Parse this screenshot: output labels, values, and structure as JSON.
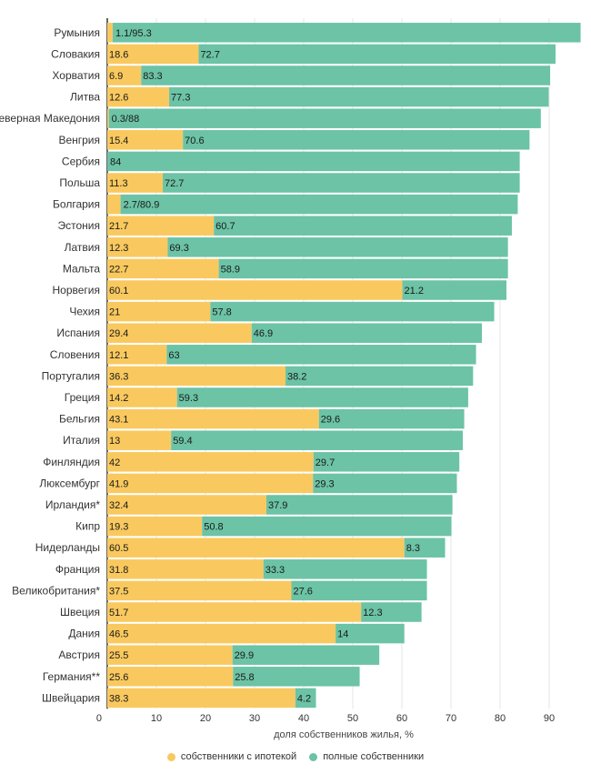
{
  "chart_data": {
    "type": "bar",
    "orientation": "horizontal",
    "stacked": true,
    "xlabel": "доля собственников жилья, %",
    "ylabel": "",
    "xlim": [
      0,
      97
    ],
    "xticks": [
      0,
      10,
      20,
      30,
      40,
      50,
      60,
      70,
      80,
      90
    ],
    "grid": true,
    "legend_position": "bottom",
    "categories": [
      "Румыния",
      "Словакия",
      "Хорватия",
      "Литва",
      "Северная Македония",
      "Венгрия",
      "Сербия",
      "Польша",
      "Болгария",
      "Эстония",
      "Латвия",
      "Мальта",
      "Норвегия",
      "Чехия",
      "Испания",
      "Словения",
      "Португалия",
      "Греция",
      "Бельгия",
      "Италия",
      "Финляндия",
      "Люксембург",
      "Ирландия*",
      "Кипр",
      "Нидерланды",
      "Франция",
      "Великобритания*",
      "Швеция",
      "Дания",
      "Австрия",
      "Германия**",
      "Швейцария"
    ],
    "series": [
      {
        "name": "собственники с ипотекой",
        "color": "#f9c95f",
        "values": [
          1.1,
          18.6,
          6.9,
          12.6,
          0.3,
          15.4,
          0,
          11.3,
          2.7,
          21.7,
          12.3,
          22.7,
          60.1,
          21,
          29.4,
          12.1,
          36.3,
          14.2,
          43.1,
          13,
          42,
          41.9,
          32.4,
          19.3,
          60.5,
          31.8,
          37.5,
          51.7,
          46.5,
          25.5,
          25.6,
          38.3
        ]
      },
      {
        "name": "полные собственники",
        "color": "#6cc3a6",
        "values": [
          95.3,
          72.7,
          83.3,
          77.3,
          88,
          70.6,
          84,
          72.7,
          80.9,
          60.7,
          69.3,
          58.9,
          21.2,
          57.8,
          46.9,
          63,
          38.2,
          59.3,
          29.6,
          59.4,
          29.7,
          29.3,
          37.9,
          50.8,
          8.3,
          33.3,
          27.6,
          12.3,
          14,
          29.9,
          25.8,
          4.2
        ]
      }
    ],
    "data_labels": [
      [
        "",
        "1.1/95.3"
      ],
      [
        "18.6",
        "72.7"
      ],
      [
        "6.9",
        "83.3"
      ],
      [
        "12.6",
        "77.3"
      ],
      [
        "",
        "0.3/88"
      ],
      [
        "15.4",
        "70.6"
      ],
      [
        "",
        "84"
      ],
      [
        "11.3",
        "72.7"
      ],
      [
        "",
        "2.7/80.9"
      ],
      [
        "21.7",
        "60.7"
      ],
      [
        "12.3",
        "69.3"
      ],
      [
        "22.7",
        "58.9"
      ],
      [
        "60.1",
        "21.2"
      ],
      [
        "21",
        "57.8"
      ],
      [
        "29.4",
        "46.9"
      ],
      [
        "12.1",
        "63"
      ],
      [
        "36.3",
        "38.2"
      ],
      [
        "14.2",
        "59.3"
      ],
      [
        "43.1",
        "29.6"
      ],
      [
        "13",
        "59.4"
      ],
      [
        "42",
        "29.7"
      ],
      [
        "41.9",
        "29.3"
      ],
      [
        "32.4",
        "37.9"
      ],
      [
        "19.3",
        "50.8"
      ],
      [
        "60.5",
        "8.3"
      ],
      [
        "31.8",
        "33.3"
      ],
      [
        "37.5",
        "27.6"
      ],
      [
        "51.7",
        "12.3"
      ],
      [
        "46.5",
        "14"
      ],
      [
        "25.5",
        "29.9"
      ],
      [
        "25.6",
        "25.8"
      ],
      [
        "38.3",
        "4.2"
      ]
    ]
  }
}
